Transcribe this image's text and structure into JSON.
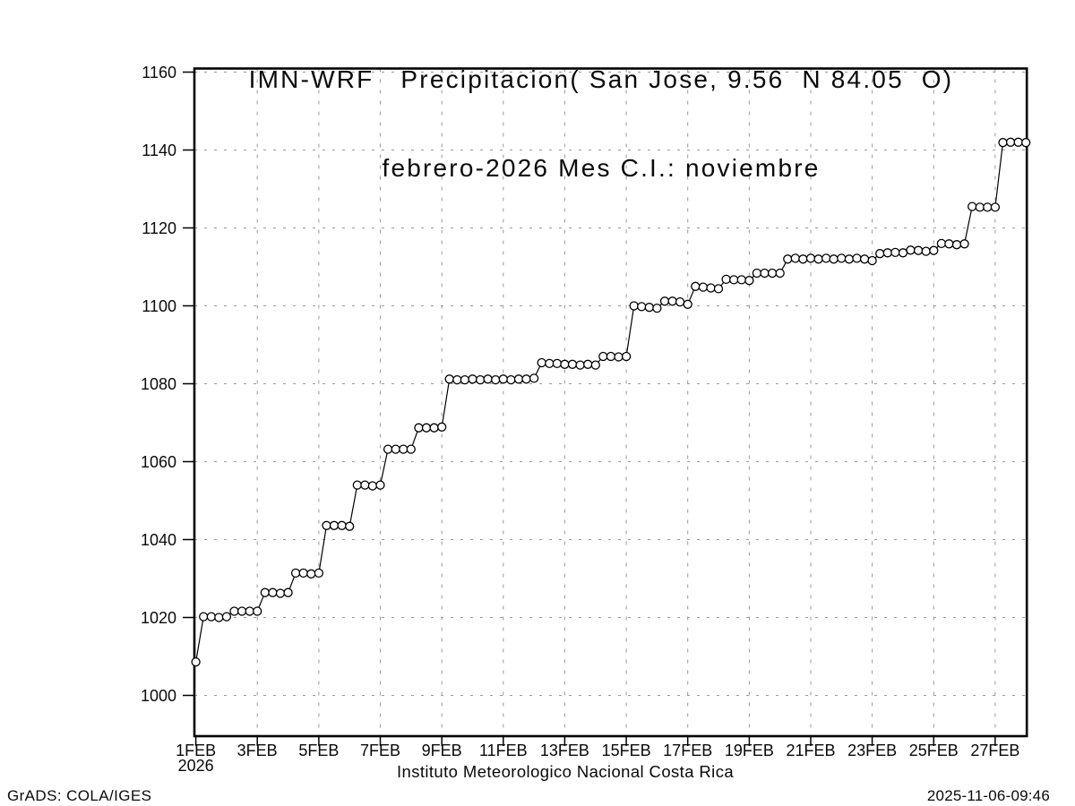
{
  "chart": {
    "title_line1": "IMN-WRF   Precipitacion( San Jose, 9.56  N 84.05  O)",
    "title_line2": "febrero-2026 Mes C.I.: noviembre",
    "caption": "Instituto Meteorologico Nacional Costa Rica"
  },
  "footer": {
    "left": "GrADS: COLA/IGES",
    "right": "2025-11-06-09:46"
  },
  "chart_data": {
    "type": "line",
    "marker": "open-circle",
    "title": "IMN-WRF  Precipitacion( San Jose, 9.56 N 84.05 O)",
    "subtitle": "febrero-2026 Mes C.I.: noviembre",
    "xlabel": "Instituto Meteorologico Nacional Costa Rica",
    "ylabel": "",
    "grid": true,
    "legend": "none",
    "ylim": [
      1000,
      1160
    ],
    "y_ticks": [
      1000,
      1020,
      1040,
      1060,
      1080,
      1100,
      1120,
      1140,
      1160
    ],
    "x_start": "1FEB2026 00:00",
    "x_step_hours": 6,
    "x_year_label": "2026",
    "x_tick_days": [
      1,
      3,
      5,
      7,
      9,
      11,
      13,
      15,
      17,
      19,
      21,
      23,
      25,
      27
    ],
    "x_tick_labels": [
      "1FEB",
      "3FEB",
      "5FEB",
      "7FEB",
      "9FEB",
      "11FEB",
      "13FEB",
      "15FEB",
      "17FEB",
      "19FEB",
      "21FEB",
      "23FEB",
      "25FEB",
      "27FEB"
    ],
    "colors": {
      "background": "#ffffff",
      "line": "#000000",
      "marker_fill": "#ffffff",
      "grid": "#9a9a9a",
      "text": "#0a0a0a"
    },
    "values": [
      1008.6,
      1020.2,
      1020.2,
      1020.0,
      1020.2,
      1021.6,
      1021.6,
      1021.6,
      1021.6,
      1026.4,
      1026.4,
      1026.2,
      1026.4,
      1031.4,
      1031.4,
      1031.2,
      1031.4,
      1043.6,
      1043.6,
      1043.6,
      1043.4,
      1054.0,
      1054.0,
      1053.8,
      1054.0,
      1063.2,
      1063.2,
      1063.2,
      1063.2,
      1068.7,
      1068.7,
      1068.7,
      1068.9,
      1081.2,
      1081.0,
      1081.0,
      1081.2,
      1081.0,
      1081.2,
      1081.0,
      1081.2,
      1081.0,
      1081.2,
      1081.2,
      1081.4,
      1085.4,
      1085.2,
      1085.2,
      1085.0,
      1085.0,
      1084.8,
      1085.0,
      1084.8,
      1087.0,
      1087.0,
      1086.9,
      1087.0,
      1100.0,
      1099.8,
      1099.6,
      1099.4,
      1101.2,
      1101.2,
      1101.0,
      1100.4,
      1105.0,
      1104.8,
      1104.6,
      1104.4,
      1106.8,
      1106.7,
      1106.7,
      1106.5,
      1108.4,
      1108.4,
      1108.4,
      1108.4,
      1112.0,
      1112.2,
      1112.0,
      1112.2,
      1112.0,
      1112.2,
      1112.0,
      1112.2,
      1112.0,
      1112.2,
      1112.0,
      1111.6,
      1113.4,
      1113.6,
      1113.7,
      1113.6,
      1114.3,
      1114.2,
      1114.0,
      1114.2,
      1116.0,
      1115.9,
      1115.7,
      1115.9,
      1125.5,
      1125.3,
      1125.3,
      1125.3,
      1141.9,
      1142.0,
      1142.0,
      1141.9
    ]
  }
}
